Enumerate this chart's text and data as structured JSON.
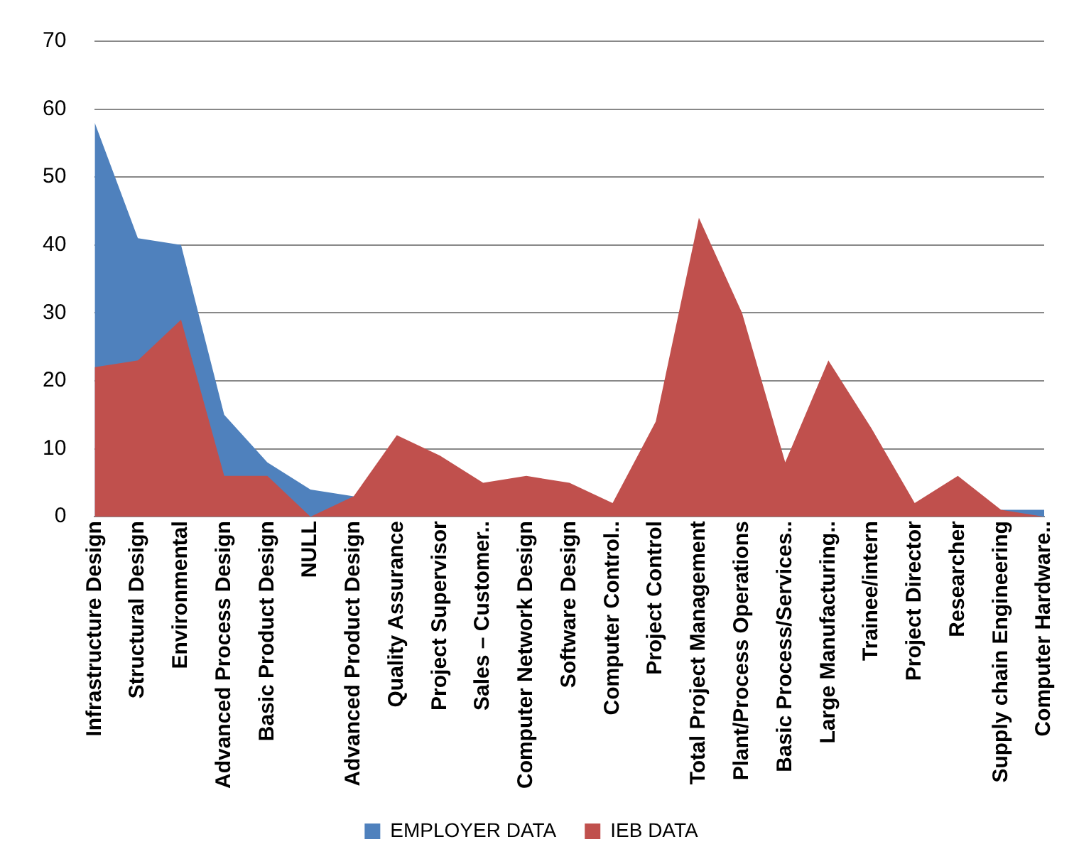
{
  "chart_data": {
    "type": "area",
    "categories": [
      "Infrastructure Design",
      "Structural Design",
      "Environmental",
      "Advanced Process Design",
      "Basic Product Design",
      "NULL",
      "Advanced Product Design",
      "Quality Assurance",
      "Project Supervisor",
      "Sales – Customer..",
      "Computer Network Design",
      "Software Design",
      "Computer Control..",
      "Project Control",
      "Total Project Management",
      "Plant/Process Operations",
      "Basic Process/Services..",
      "Large Manufacturing..",
      "Trainee/intern",
      "Project Director",
      "Researcher",
      "Supply chain Engineering",
      "Computer Hardware.."
    ],
    "series": [
      {
        "name": "EMPLOYER DATA",
        "color": "#4f81bd",
        "values": [
          58,
          41,
          40,
          15,
          8,
          4,
          3,
          null,
          null,
          null,
          null,
          null,
          null,
          null,
          null,
          null,
          null,
          null,
          null,
          null,
          null,
          1,
          1
        ]
      },
      {
        "name": "IEB DATA",
        "color": "#c0504d",
        "values": [
          22,
          23,
          29,
          6,
          6,
          0,
          3,
          12,
          9,
          5,
          6,
          5,
          2,
          14,
          44,
          30,
          8,
          23,
          13,
          2,
          6,
          1,
          0
        ]
      }
    ],
    "ylim": [
      0,
      70
    ],
    "yticks": [
      0,
      10,
      20,
      30,
      40,
      50,
      60,
      70
    ],
    "grid": "y",
    "legend": "bottom"
  }
}
